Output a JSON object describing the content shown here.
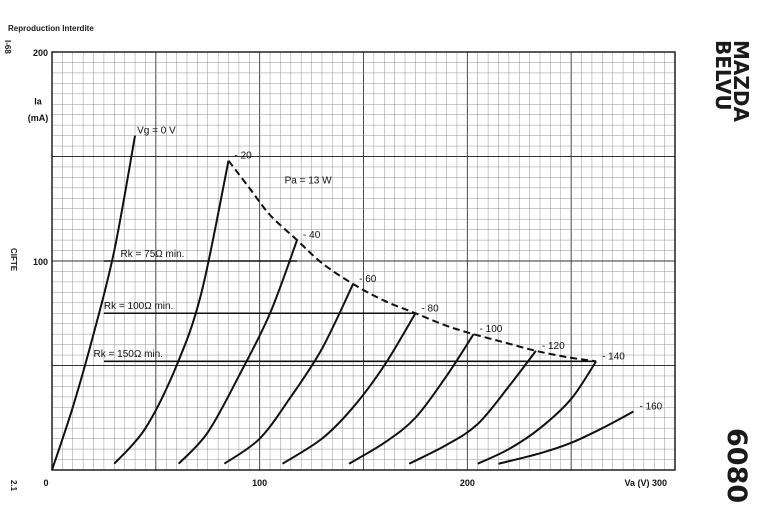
{
  "header": {
    "notice": "Reproduction Interdite",
    "page_code_top": "I-68",
    "page_code_bottom": "2.1",
    "side_label": "CIFTE",
    "brand_line1": "MAZDA",
    "brand_line2": "BELVU",
    "model": "6080"
  },
  "chart_data": {
    "type": "line",
    "xlabel": "Va (V)",
    "ylabel_line1": "Ia",
    "ylabel_line2": "(mA)",
    "xlim": [
      0,
      300
    ],
    "ylim": [
      0,
      200
    ],
    "x_tick_labels": [
      "0",
      "100",
      "200",
      "300"
    ],
    "y_tick_labels": [
      "100",
      "200"
    ],
    "grid": true,
    "series": [
      {
        "name": "Vg = 0 V",
        "label": "Vg = 0 V",
        "points": [
          [
            0,
            0
          ],
          [
            10,
            30
          ],
          [
            20,
            65
          ],
          [
            30,
            105
          ],
          [
            40,
            160
          ]
        ]
      },
      {
        "name": "-20",
        "label": "- 20",
        "points": [
          [
            30,
            3
          ],
          [
            45,
            20
          ],
          [
            60,
            50
          ],
          [
            72,
            85
          ],
          [
            85,
            148
          ]
        ]
      },
      {
        "name": "-40",
        "label": "- 40",
        "points": [
          [
            61,
            3
          ],
          [
            75,
            18
          ],
          [
            90,
            45
          ],
          [
            105,
            75
          ],
          [
            118,
            110
          ]
        ]
      },
      {
        "name": "-60",
        "label": "- 60",
        "points": [
          [
            83,
            3
          ],
          [
            100,
            15
          ],
          [
            115,
            35
          ],
          [
            130,
            58
          ],
          [
            145,
            89
          ]
        ]
      },
      {
        "name": "-80",
        "label": "- 80",
        "points": [
          [
            111,
            3
          ],
          [
            130,
            15
          ],
          [
            145,
            30
          ],
          [
            160,
            50
          ],
          [
            175,
            75
          ]
        ]
      },
      {
        "name": "-100",
        "label": "- 100",
        "points": [
          [
            143,
            3
          ],
          [
            160,
            13
          ],
          [
            175,
            25
          ],
          [
            190,
            45
          ],
          [
            203,
            65
          ]
        ]
      },
      {
        "name": "-120",
        "label": "- 120",
        "points": [
          [
            172,
            3
          ],
          [
            190,
            12
          ],
          [
            205,
            22
          ],
          [
            220,
            40
          ],
          [
            233,
            57
          ]
        ]
      },
      {
        "name": "-140",
        "label": "- 140",
        "points": [
          [
            205,
            3
          ],
          [
            220,
            10
          ],
          [
            235,
            20
          ],
          [
            250,
            34
          ],
          [
            262,
            52
          ]
        ]
      },
      {
        "name": "-160",
        "label": "- 160",
        "points": [
          [
            215,
            3
          ],
          [
            235,
            8
          ],
          [
            250,
            13
          ],
          [
            265,
            20
          ],
          [
            280,
            28
          ]
        ]
      }
    ],
    "pa_curve": {
      "label": "Pa = 13 W",
      "points": [
        [
          85,
          148
        ],
        [
          95,
          135
        ],
        [
          105,
          122
        ],
        [
          118,
          110
        ],
        [
          130,
          99
        ],
        [
          145,
          89
        ],
        [
          160,
          81
        ],
        [
          175,
          75
        ],
        [
          190,
          69
        ],
        [
          203,
          65
        ],
        [
          218,
          61
        ],
        [
          233,
          57
        ],
        [
          248,
          54
        ],
        [
          262,
          52
        ]
      ]
    },
    "rk_lines": [
      {
        "label": "Rk = 75Ω min.",
        "y": 100,
        "x_end": 118
      },
      {
        "label": "Rk = 100Ω min.",
        "y": 75,
        "x_end": 175
      },
      {
        "label": "Rk = 150Ω min.",
        "y": 52,
        "x_end": 262
      }
    ]
  }
}
